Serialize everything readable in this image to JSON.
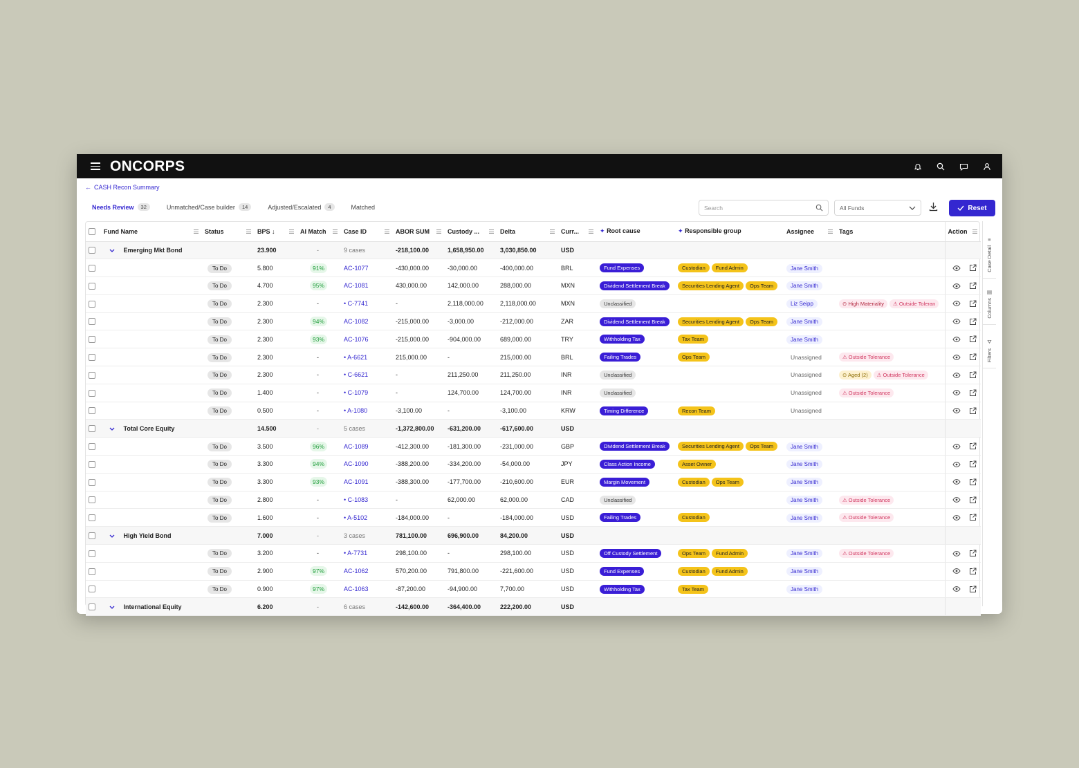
{
  "app": {
    "logo": "ONCORPS"
  },
  "breadcrumb": {
    "label": "CASH Recon Summary"
  },
  "tabs": [
    {
      "label": "Needs Review",
      "count": "32"
    },
    {
      "label": "Unmatched/Case builder",
      "count": "14"
    },
    {
      "label": "Adjusted/Escalated",
      "count": "4"
    },
    {
      "label": "Matched",
      "count": ""
    }
  ],
  "toolbar": {
    "search_placeholder": "Search",
    "funds_value": "All Funds",
    "reset_label": "Reset"
  },
  "columns": [
    "Fund Name",
    "Status",
    "BPS",
    "AI Match",
    "Case ID",
    "ABOR SUM",
    "Custody ...",
    "Delta",
    "Curr...",
    "Root cause",
    "Responsible group",
    "Assignee",
    "Tags",
    "Action"
  ],
  "side_panel": {
    "case_detail": "Case Detail",
    "columns": "Columns",
    "filters": "Filters"
  },
  "rows": [
    {
      "type": "group",
      "fund": "Emerging Mkt Bond",
      "bps": "23.900",
      "ai": "-",
      "case": "9 cases",
      "abor": "-218,100.00",
      "custody": "1,658,950.00",
      "delta": "3,030,850.00",
      "curr": "USD"
    },
    {
      "type": "row",
      "status": "To Do",
      "bps": "5.800",
      "ai": "91%",
      "case": "AC-1077",
      "abor": "-430,000.00",
      "custody": "-30,000.00",
      "delta": "-400,000.00",
      "curr": "BRL",
      "root": "Fund Expenses",
      "groups": [
        "Custodian",
        "Fund Admin"
      ],
      "assignee": "Jane Smith",
      "tags": []
    },
    {
      "type": "row",
      "status": "To Do",
      "bps": "4.700",
      "ai": "95%",
      "case": "AC-1081",
      "abor": "430,000.00",
      "custody": "142,000.00",
      "delta": "288,000.00",
      "curr": "MXN",
      "root": "Dividend Settlement Break",
      "groups": [
        "Securities Lending Agent",
        "Ops Team"
      ],
      "assignee": "Jane Smith",
      "tags": []
    },
    {
      "type": "row",
      "status": "To Do",
      "bps": "2.300",
      "ai": "-",
      "case": "• C-7741",
      "abor": "-",
      "custody": "2,118,000.00",
      "delta": "2,118,000.00",
      "curr": "MXN",
      "root": "Unclassified",
      "groups": [],
      "assignee": "Liz Seipp",
      "tags": [
        {
          "label": "⊙ High Materiality",
          "kind": "mat"
        },
        {
          "label": "⚠ Outside Toleran",
          "kind": "tol"
        }
      ]
    },
    {
      "type": "row",
      "status": "To Do",
      "bps": "2.300",
      "ai": "94%",
      "case": "AC-1082",
      "abor": "-215,000.00",
      "custody": "-3,000.00",
      "delta": "-212,000.00",
      "curr": "ZAR",
      "root": "Dividend Settlement Break",
      "groups": [
        "Securities Lending Agent",
        "Ops Team"
      ],
      "assignee": "Jane Smith",
      "tags": []
    },
    {
      "type": "row",
      "status": "To Do",
      "bps": "2.300",
      "ai": "93%",
      "case": "AC-1076",
      "abor": "-215,000.00",
      "custody": "-904,000.00",
      "delta": "689,000.00",
      "curr": "TRY",
      "root": "Withholding Tax",
      "groups": [
        "Tax Team"
      ],
      "assignee": "Jane Smith",
      "tags": []
    },
    {
      "type": "row",
      "status": "To Do",
      "bps": "2.300",
      "ai": "-",
      "case": "• A-6621",
      "abor": "215,000.00",
      "custody": "-",
      "delta": "215,000.00",
      "curr": "BRL",
      "root": "Failing Trades",
      "groups": [
        "Ops Team"
      ],
      "assignee": "Unassigned",
      "tags": [
        {
          "label": "⚠ Outside Tolerance",
          "kind": "tol"
        }
      ]
    },
    {
      "type": "row",
      "status": "To Do",
      "bps": "2.300",
      "ai": "-",
      "case": "• C-6621",
      "abor": "-",
      "custody": "211,250.00",
      "delta": "211,250.00",
      "curr": "INR",
      "root": "Unclassified",
      "groups": [],
      "assignee": "Unassigned",
      "tags": [
        {
          "label": "⊙ Aged (2)",
          "kind": "aged"
        },
        {
          "label": "⚠ Outside Tolerance",
          "kind": "tol"
        }
      ]
    },
    {
      "type": "row",
      "status": "To Do",
      "bps": "1.400",
      "ai": "-",
      "case": "• C-1079",
      "abor": "-",
      "custody": "124,700.00",
      "delta": "124,700.00",
      "curr": "INR",
      "root": "Unclassified",
      "groups": [],
      "assignee": "Unassigned",
      "tags": [
        {
          "label": "⚠ Outside Tolerance",
          "kind": "tol"
        }
      ]
    },
    {
      "type": "row",
      "status": "To Do",
      "bps": "0.500",
      "ai": "-",
      "case": "• A-1080",
      "abor": "-3,100.00",
      "custody": "-",
      "delta": "-3,100.00",
      "curr": "KRW",
      "root": "Timing Difference",
      "groups": [
        "Recon Team"
      ],
      "assignee": "Unassigned",
      "tags": []
    },
    {
      "type": "group",
      "fund": "Total Core Equity",
      "bps": "14.500",
      "ai": "-",
      "case": "5 cases",
      "abor": "-1,372,800.00",
      "custody": "-631,200.00",
      "delta": "-617,600.00",
      "curr": "USD"
    },
    {
      "type": "row",
      "status": "To Do",
      "bps": "3.500",
      "ai": "96%",
      "case": "AC-1089",
      "abor": "-412,300.00",
      "custody": "-181,300.00",
      "delta": "-231,000.00",
      "curr": "GBP",
      "root": "Dividend Settlement Break",
      "groups": [
        "Securities Lending Agent",
        "Ops Team"
      ],
      "assignee": "Jane Smith",
      "tags": []
    },
    {
      "type": "row",
      "status": "To Do",
      "bps": "3.300",
      "ai": "94%",
      "case": "AC-1090",
      "abor": "-388,200.00",
      "custody": "-334,200.00",
      "delta": "-54,000.00",
      "curr": "JPY",
      "root": "Class Action Income",
      "groups": [
        "Asset Owner"
      ],
      "assignee": "Jane Smith",
      "tags": []
    },
    {
      "type": "row",
      "status": "To Do",
      "bps": "3.300",
      "ai": "93%",
      "case": "AC-1091",
      "abor": "-388,300.00",
      "custody": "-177,700.00",
      "delta": "-210,600.00",
      "curr": "EUR",
      "root": "Margin Movement",
      "groups": [
        "Custodian",
        "Ops Team"
      ],
      "assignee": "Jane Smith",
      "tags": []
    },
    {
      "type": "row",
      "status": "To Do",
      "bps": "2.800",
      "ai": "-",
      "case": "• C-1083",
      "abor": "-",
      "custody": "62,000.00",
      "delta": "62,000.00",
      "curr": "CAD",
      "root": "Unclassified",
      "groups": [],
      "assignee": "Jane Smith",
      "tags": [
        {
          "label": "⚠ Outside Tolerance",
          "kind": "tol"
        }
      ]
    },
    {
      "type": "row",
      "status": "To Do",
      "bps": "1.600",
      "ai": "-",
      "case": "• A-5102",
      "abor": "-184,000.00",
      "custody": "-",
      "delta": "-184,000.00",
      "curr": "USD",
      "root": "Failing Trades",
      "groups": [
        "Custodian"
      ],
      "assignee": "Jane Smith",
      "tags": [
        {
          "label": "⚠ Outside Tolerance",
          "kind": "tol"
        }
      ]
    },
    {
      "type": "group",
      "fund": "High Yield Bond",
      "bps": "7.000",
      "ai": "-",
      "case": "3 cases",
      "abor": "781,100.00",
      "custody": "696,900.00",
      "delta": "84,200.00",
      "curr": "USD"
    },
    {
      "type": "row",
      "status": "To Do",
      "bps": "3.200",
      "ai": "-",
      "case": "• A-7731",
      "abor": "298,100.00",
      "custody": "-",
      "delta": "298,100.00",
      "curr": "USD",
      "root": "Off Custody Settlement",
      "groups": [
        "Ops Team",
        "Fund Admin"
      ],
      "assignee": "Jane Smith",
      "tags": [
        {
          "label": "⚠ Outside Tolerance",
          "kind": "tol"
        }
      ]
    },
    {
      "type": "row",
      "status": "To Do",
      "bps": "2.900",
      "ai": "97%",
      "case": "AC-1062",
      "abor": "570,200.00",
      "custody": "791,800.00",
      "delta": "-221,600.00",
      "curr": "USD",
      "root": "Fund Expenses",
      "groups": [
        "Custodian",
        "Fund Admin"
      ],
      "assignee": "Jane Smith",
      "tags": []
    },
    {
      "type": "row",
      "status": "To Do",
      "bps": "0.900",
      "ai": "97%",
      "case": "AC-1063",
      "abor": "-87,200.00",
      "custody": "-94,900.00",
      "delta": "7,700.00",
      "curr": "USD",
      "root": "Withholding Tax",
      "groups": [
        "Tax Team"
      ],
      "assignee": "Jane Smith",
      "tags": []
    },
    {
      "type": "group",
      "fund": "International Equity",
      "bps": "6.200",
      "ai": "-",
      "case": "6 cases",
      "abor": "-142,600.00",
      "custody": "-364,400.00",
      "delta": "222,200.00",
      "curr": "USD"
    }
  ]
}
